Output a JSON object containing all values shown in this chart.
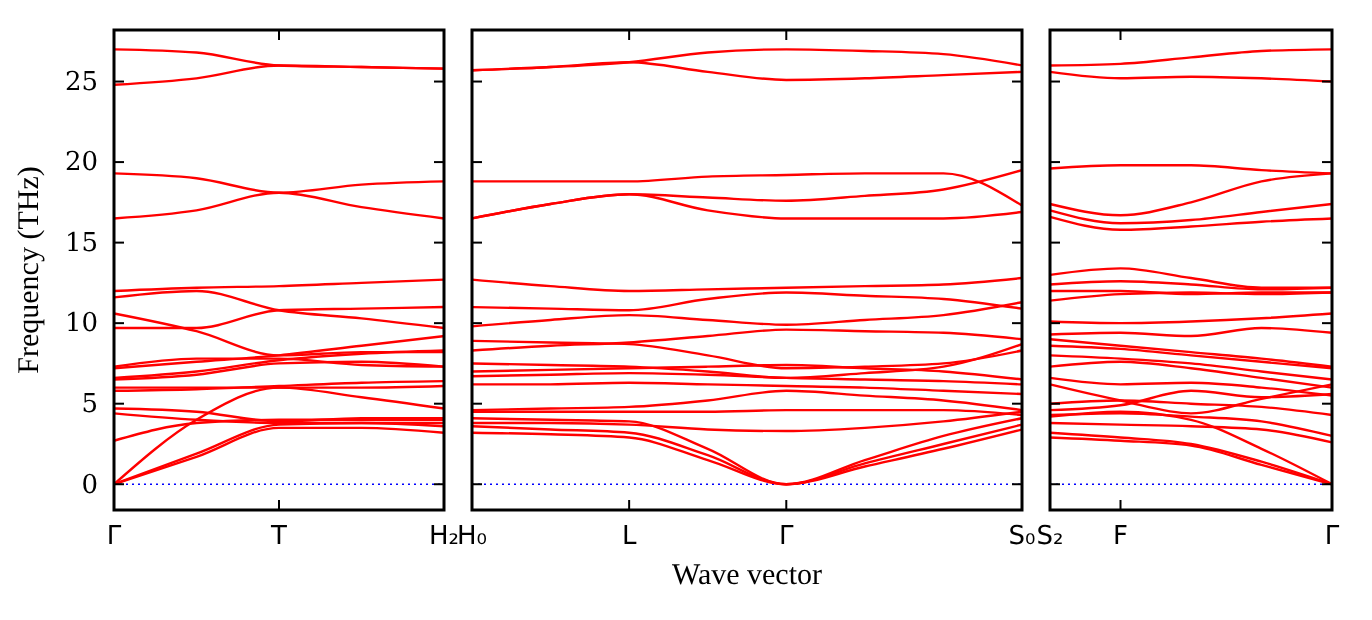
{
  "chart_data": [
    {
      "type": "line",
      "ylabel": "Frequency (THz)",
      "tick_labels": "xy",
      "categories": [
        "Γ",
        null,
        "T",
        null,
        "H₂"
      ],
      "ylim": [
        -1.6,
        28.2
      ],
      "yticks": [
        0,
        5,
        10,
        15,
        20,
        25
      ],
      "line_style": "solid",
      "marker": "none",
      "ref_lines": [
        {
          "axis": "y",
          "value": 0,
          "color": "#0000ff",
          "line_style": "dotted"
        }
      ],
      "series": [
        {
          "color": "#ff0000",
          "values": [
            0,
            1.7,
            3.5,
            3.5,
            3.2
          ]
        },
        {
          "color": "#ff0000",
          "values": [
            0,
            1.9,
            3.7,
            3.8,
            3.6
          ]
        },
        {
          "color": "#ff0000",
          "values": [
            0,
            4.0,
            6.0,
            5.4,
            4.7
          ]
        },
        {
          "color": "#ff0000",
          "values": [
            2.7,
            3.8,
            4.0,
            4.0,
            4.0
          ]
        },
        {
          "color": "#ff0000",
          "values": [
            4.4,
            4.0,
            3.8,
            3.8,
            3.8
          ]
        },
        {
          "color": "#ff0000",
          "values": [
            4.7,
            4.5,
            3.9,
            4.1,
            4.1
          ]
        },
        {
          "color": "#ff0000",
          "values": [
            5.8,
            5.9,
            6.1,
            6.3,
            6.4
          ]
        },
        {
          "color": "#ff0000",
          "values": [
            6.0,
            6.0,
            6.0,
            6.0,
            6.1
          ]
        },
        {
          "color": "#ff0000",
          "values": [
            6.5,
            6.8,
            7.5,
            7.6,
            7.3
          ]
        },
        {
          "color": "#ff0000",
          "values": [
            6.6,
            7.0,
            7.7,
            8.1,
            8.3
          ]
        },
        {
          "color": "#ff0000",
          "values": [
            7.2,
            7.6,
            8.0,
            8.6,
            9.2
          ]
        },
        {
          "color": "#ff0000",
          "values": [
            7.3,
            7.8,
            7.8,
            7.4,
            7.3
          ]
        },
        {
          "color": "#ff0000",
          "values": [
            9.7,
            9.7,
            10.8,
            10.9,
            11.0
          ]
        },
        {
          "color": "#ff0000",
          "values": [
            10.6,
            9.5,
            8.0,
            8.2,
            8.2
          ]
        },
        {
          "color": "#ff0000",
          "values": [
            11.6,
            12.0,
            10.8,
            10.3,
            9.7
          ]
        },
        {
          "color": "#ff0000",
          "values": [
            12.0,
            12.2,
            12.3,
            12.5,
            12.7
          ]
        },
        {
          "color": "#ff0000",
          "values": [
            16.5,
            17.0,
            18.1,
            17.2,
            16.5
          ]
        },
        {
          "color": "#ff0000",
          "values": [
            19.3,
            19.0,
            18.1,
            18.6,
            18.8
          ]
        },
        {
          "color": "#ff0000",
          "values": [
            24.8,
            25.2,
            26.0,
            25.9,
            25.8
          ]
        },
        {
          "color": "#ff0000",
          "values": [
            27.0,
            26.8,
            26.0,
            25.9,
            25.8
          ]
        }
      ]
    },
    {
      "type": "line",
      "xlabel": "Wave vector",
      "tick_labels": "x",
      "categories": [
        "H₀",
        null,
        "L",
        null,
        "Γ",
        null,
        null,
        "S₀"
      ],
      "ylim": [
        -1.6,
        28.2
      ],
      "yticks": [
        0,
        5,
        10,
        15,
        20,
        25
      ],
      "line_style": "solid",
      "marker": "none",
      "ref_lines": [
        {
          "axis": "y",
          "value": 0,
          "color": "#0000ff",
          "line_style": "dotted"
        }
      ],
      "series": [
        {
          "color": "#ff0000",
          "values": [
            3.6,
            3.4,
            3.2,
            1.8,
            0,
            1.3,
            2.5,
            3.7
          ]
        },
        {
          "color": "#ff0000",
          "values": [
            3.2,
            3.1,
            2.9,
            1.5,
            0,
            1.1,
            2.2,
            3.4
          ]
        },
        {
          "color": "#ff0000",
          "values": [
            4.1,
            4.0,
            3.9,
            2.2,
            0,
            1.5,
            3.0,
            4.1
          ]
        },
        {
          "color": "#ff0000",
          "values": [
            3.8,
            3.8,
            3.7,
            3.4,
            3.3,
            3.5,
            3.9,
            4.5
          ]
        },
        {
          "color": "#ff0000",
          "values": [
            4.5,
            4.5,
            4.5,
            4.5,
            4.6,
            4.6,
            4.6,
            4.3
          ]
        },
        {
          "color": "#ff0000",
          "values": [
            4.6,
            4.7,
            4.8,
            5.2,
            5.8,
            5.5,
            5.2,
            4.6
          ]
        },
        {
          "color": "#ff0000",
          "values": [
            6.2,
            6.2,
            6.3,
            6.2,
            6.1,
            6.0,
            5.8,
            5.6
          ]
        },
        {
          "color": "#ff0000",
          "values": [
            6.7,
            6.8,
            6.9,
            6.8,
            6.6,
            6.5,
            6.4,
            6.2
          ]
        },
        {
          "color": "#ff0000",
          "values": [
            7.0,
            7.1,
            7.2,
            7.3,
            7.4,
            7.2,
            7.0,
            6.5
          ]
        },
        {
          "color": "#ff0000",
          "values": [
            7.5,
            7.4,
            7.3,
            7.0,
            6.6,
            6.9,
            7.3,
            8.7
          ]
        },
        {
          "color": "#ff0000",
          "values": [
            8.3,
            8.6,
            8.8,
            9.2,
            9.6,
            9.5,
            9.4,
            9.0
          ]
        },
        {
          "color": "#ff0000",
          "values": [
            8.9,
            8.8,
            8.7,
            8.0,
            7.2,
            7.3,
            7.5,
            8.3
          ]
        },
        {
          "color": "#ff0000",
          "values": [
            9.8,
            10.2,
            10.5,
            10.2,
            9.9,
            10.2,
            10.5,
            11.3
          ]
        },
        {
          "color": "#ff0000",
          "values": [
            11.0,
            10.9,
            10.8,
            11.5,
            11.9,
            11.7,
            11.5,
            10.9
          ]
        },
        {
          "color": "#ff0000",
          "values": [
            12.7,
            12.3,
            12.0,
            12.1,
            12.2,
            12.3,
            12.4,
            12.8
          ]
        },
        {
          "color": "#ff0000",
          "values": [
            16.5,
            17.4,
            18.0,
            17.0,
            16.5,
            16.5,
            16.5,
            16.9
          ]
        },
        {
          "color": "#ff0000",
          "values": [
            16.5,
            17.4,
            18.0,
            17.8,
            17.6,
            17.9,
            18.3,
            19.5
          ]
        },
        {
          "color": "#ff0000",
          "values": [
            18.8,
            18.8,
            18.8,
            19.1,
            19.2,
            19.3,
            19.3,
            17.3
          ]
        },
        {
          "color": "#ff0000",
          "values": [
            25.7,
            25.9,
            26.2,
            26.8,
            27.0,
            26.9,
            26.7,
            26.0
          ]
        },
        {
          "color": "#ff0000",
          "values": [
            25.7,
            25.9,
            26.2,
            25.6,
            25.1,
            25.2,
            25.4,
            25.6
          ]
        }
      ]
    },
    {
      "type": "line",
      "tick_labels": "x",
      "categories": [
        "S₂",
        "F",
        null,
        null,
        "Γ"
      ],
      "ylim": [
        -1.6,
        28.2
      ],
      "yticks": [
        0,
        5,
        10,
        15,
        20,
        25
      ],
      "line_style": "solid",
      "marker": "none",
      "ref_lines": [
        {
          "axis": "y",
          "value": 0,
          "color": "#0000ff",
          "line_style": "dotted"
        }
      ],
      "series": [
        {
          "color": "#ff0000",
          "values": [
            3.2,
            2.9,
            2.5,
            1.4,
            0
          ]
        },
        {
          "color": "#ff0000",
          "values": [
            2.9,
            2.7,
            2.4,
            1.2,
            0
          ]
        },
        {
          "color": "#ff0000",
          "values": [
            4.2,
            4.5,
            4.0,
            2.2,
            0
          ]
        },
        {
          "color": "#ff0000",
          "values": [
            3.8,
            3.7,
            3.6,
            3.4,
            2.6
          ]
        },
        {
          "color": "#ff0000",
          "values": [
            4.3,
            4.4,
            4.2,
            3.9,
            3.0
          ]
        },
        {
          "color": "#ff0000",
          "values": [
            4.6,
            4.9,
            5.8,
            5.4,
            5.6
          ]
        },
        {
          "color": "#ff0000",
          "values": [
            5.0,
            5.2,
            5.0,
            4.8,
            4.3
          ]
        },
        {
          "color": "#ff0000",
          "values": [
            6.2,
            5.2,
            4.4,
            5.3,
            6.2
          ]
        },
        {
          "color": "#ff0000",
          "values": [
            6.6,
            6.2,
            6.3,
            6.0,
            5.5
          ]
        },
        {
          "color": "#ff0000",
          "values": [
            7.3,
            7.6,
            7.2,
            6.6,
            6.0
          ]
        },
        {
          "color": "#ff0000",
          "values": [
            8.0,
            7.8,
            7.5,
            7.0,
            6.5
          ]
        },
        {
          "color": "#ff0000",
          "values": [
            8.6,
            8.4,
            8.0,
            7.6,
            7.2
          ]
        },
        {
          "color": "#ff0000",
          "values": [
            9.0,
            8.6,
            8.2,
            7.8,
            7.3
          ]
        },
        {
          "color": "#ff0000",
          "values": [
            9.3,
            9.4,
            9.2,
            9.7,
            9.4
          ]
        },
        {
          "color": "#ff0000",
          "values": [
            10.1,
            10.0,
            10.1,
            10.3,
            10.6
          ]
        },
        {
          "color": "#ff0000",
          "values": [
            11.4,
            11.8,
            11.9,
            11.8,
            11.9
          ]
        },
        {
          "color": "#ff0000",
          "values": [
            12.0,
            12.0,
            11.8,
            11.9,
            11.9
          ]
        },
        {
          "color": "#ff0000",
          "values": [
            12.4,
            12.6,
            12.4,
            12.1,
            12.2
          ]
        },
        {
          "color": "#ff0000",
          "values": [
            13.0,
            13.4,
            12.8,
            12.2,
            12.2
          ]
        },
        {
          "color": "#ff0000",
          "values": [
            16.6,
            15.8,
            16.0,
            16.3,
            16.5
          ]
        },
        {
          "color": "#ff0000",
          "values": [
            17.0,
            16.2,
            16.4,
            16.9,
            17.4
          ]
        },
        {
          "color": "#ff0000",
          "values": [
            17.4,
            16.7,
            17.5,
            18.8,
            19.3
          ]
        },
        {
          "color": "#ff0000",
          "values": [
            19.6,
            19.8,
            19.8,
            19.5,
            19.3
          ]
        },
        {
          "color": "#ff0000",
          "values": [
            25.6,
            25.2,
            25.3,
            25.2,
            25.0
          ]
        },
        {
          "color": "#ff0000",
          "values": [
            26.0,
            26.1,
            26.5,
            26.9,
            27.0
          ]
        }
      ]
    }
  ]
}
